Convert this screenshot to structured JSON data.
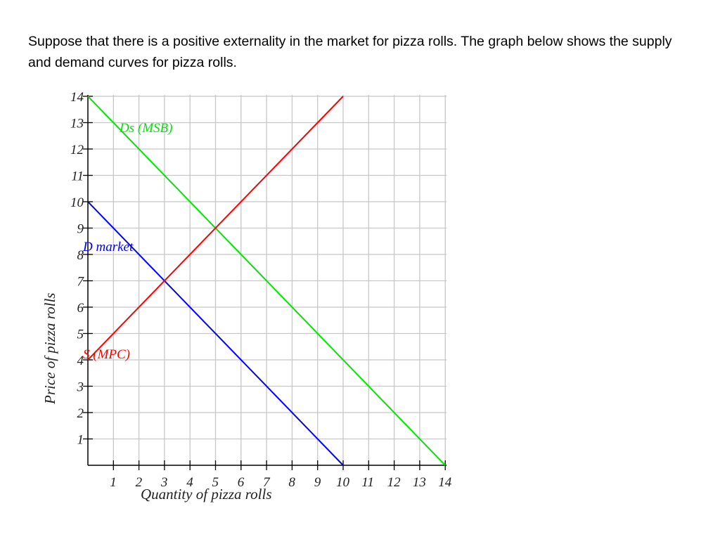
{
  "question": {
    "text": "Suppose that there is a positive externality in the market for pizza rolls. The graph below shows the supply and demand curves for pizza rolls."
  },
  "chart_data": {
    "type": "line",
    "title": "",
    "xlabel": "Quantity of pizza rolls",
    "ylabel": "Price of pizza rolls",
    "xlim": [
      0,
      14
    ],
    "ylim": [
      0,
      14
    ],
    "x_ticks": [
      1,
      2,
      3,
      4,
      5,
      6,
      7,
      8,
      9,
      10,
      11,
      12,
      13,
      14
    ],
    "y_ticks": [
      1,
      2,
      3,
      4,
      5,
      6,
      7,
      8,
      9,
      10,
      11,
      12,
      13,
      14
    ],
    "grid": true,
    "series": [
      {
        "name": "Ds (MSB)",
        "color": "#00e600",
        "points": [
          [
            0,
            14
          ],
          [
            14,
            0
          ]
        ]
      },
      {
        "name": "D market",
        "color": "#0000ff",
        "points": [
          [
            0,
            10
          ],
          [
            10,
            0
          ]
        ]
      },
      {
        "name": "S (MPC)",
        "color": "#ff0000",
        "points": [
          [
            0,
            4
          ],
          [
            10,
            14
          ]
        ]
      }
    ]
  }
}
